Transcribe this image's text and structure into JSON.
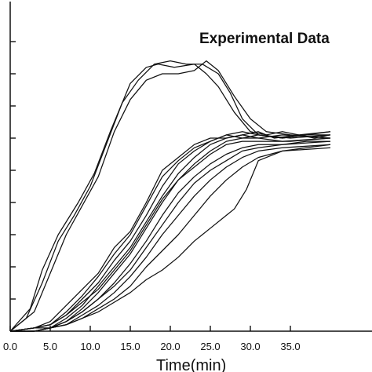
{
  "chart_data": {
    "type": "line",
    "title": "Experimental Data",
    "xlabel": "Time(min)",
    "ylabel": "",
    "xlim": [
      0,
      40
    ],
    "ylim": [
      0,
      10
    ],
    "x_ticks": [
      "0.0",
      "5.0",
      "10.0",
      "15.0",
      "20.0",
      "25.0",
      "30.0",
      "35.0"
    ],
    "x_tick_values": [
      0,
      5,
      10,
      15,
      20,
      25,
      30,
      35
    ],
    "y_tick_values": [
      1,
      2,
      3,
      4,
      5,
      6,
      7,
      8,
      9
    ],
    "grid": false,
    "legend": false,
    "line_color": "#111111",
    "series": [
      {
        "points": [
          [
            0,
            0
          ],
          [
            2.5,
            0.7
          ],
          [
            4,
            1.9
          ],
          [
            6,
            3.0
          ],
          [
            8.5,
            4.0
          ],
          [
            10.5,
            4.9
          ],
          [
            12.5,
            6.2
          ],
          [
            15,
            7.7
          ],
          [
            17,
            8.2
          ],
          [
            18.5,
            8.3
          ],
          [
            20.5,
            8.2
          ],
          [
            23,
            8.3
          ],
          [
            24.5,
            8.0
          ],
          [
            26,
            7.6
          ],
          [
            28,
            6.8
          ],
          [
            30,
            6.2
          ],
          [
            32,
            6.1
          ],
          [
            34,
            6.2
          ],
          [
            36,
            6.1
          ],
          [
            38,
            6.0
          ],
          [
            40,
            6.1
          ]
        ]
      },
      {
        "points": [
          [
            0,
            0
          ],
          [
            2,
            0.4
          ],
          [
            4,
            1.5
          ],
          [
            6,
            2.8
          ],
          [
            8,
            3.6
          ],
          [
            10,
            4.5
          ],
          [
            12,
            5.8
          ],
          [
            14,
            7.1
          ],
          [
            16,
            7.8
          ],
          [
            18,
            8.3
          ],
          [
            20,
            8.4
          ],
          [
            22,
            8.3
          ],
          [
            24,
            8.3
          ],
          [
            26,
            8.0
          ],
          [
            27.5,
            7.4
          ],
          [
            29,
            6.6
          ],
          [
            31,
            6.1
          ],
          [
            34,
            6.0
          ],
          [
            37,
            6.1
          ],
          [
            40,
            6.2
          ]
        ]
      },
      {
        "points": [
          [
            0,
            0
          ],
          [
            3,
            0.6
          ],
          [
            5,
            1.8
          ],
          [
            7,
            3.0
          ],
          [
            9,
            3.9
          ],
          [
            11,
            4.8
          ],
          [
            13,
            6.2
          ],
          [
            15,
            7.2
          ],
          [
            17,
            7.8
          ],
          [
            19,
            8.0
          ],
          [
            21,
            8.0
          ],
          [
            23,
            8.1
          ],
          [
            24.5,
            8.4
          ],
          [
            26,
            8.1
          ],
          [
            28,
            7.3
          ],
          [
            30,
            6.6
          ],
          [
            32,
            6.2
          ],
          [
            35,
            6.1
          ],
          [
            40,
            6.0
          ]
        ]
      },
      {
        "points": [
          [
            0,
            0
          ],
          [
            3,
            0.1
          ],
          [
            5,
            0.3
          ],
          [
            7,
            0.8
          ],
          [
            9,
            1.3
          ],
          [
            11,
            1.8
          ],
          [
            13,
            2.6
          ],
          [
            15,
            3.1
          ],
          [
            17,
            4.0
          ],
          [
            19,
            5.0
          ],
          [
            21,
            5.4
          ],
          [
            23,
            5.8
          ],
          [
            25,
            6.0
          ],
          [
            27,
            6.0
          ],
          [
            29,
            6.1
          ],
          [
            31,
            6.2
          ],
          [
            33,
            6.0
          ],
          [
            36,
            6.1
          ],
          [
            40,
            6.2
          ]
        ]
      },
      {
        "points": [
          [
            0,
            0
          ],
          [
            3,
            0.1
          ],
          [
            5,
            0.2
          ],
          [
            7,
            0.5
          ],
          [
            9,
            1.0
          ],
          [
            11,
            1.5
          ],
          [
            13,
            2.2
          ],
          [
            15,
            2.8
          ],
          [
            17,
            3.6
          ],
          [
            19,
            4.5
          ],
          [
            21,
            5.2
          ],
          [
            23,
            5.6
          ],
          [
            25,
            5.9
          ],
          [
            27,
            6.1
          ],
          [
            29,
            6.2
          ],
          [
            31,
            6.1
          ],
          [
            34,
            6.0
          ],
          [
            37,
            6.1
          ],
          [
            40,
            6.1
          ]
        ]
      },
      {
        "points": [
          [
            0,
            0
          ],
          [
            3,
            0.0
          ],
          [
            5,
            0.1
          ],
          [
            7,
            0.4
          ],
          [
            9,
            0.8
          ],
          [
            11,
            1.4
          ],
          [
            13,
            2.0
          ],
          [
            15,
            2.6
          ],
          [
            17,
            3.4
          ],
          [
            19,
            4.2
          ],
          [
            21,
            4.9
          ],
          [
            23,
            5.4
          ],
          [
            25,
            5.8
          ],
          [
            27,
            6.0
          ],
          [
            29,
            6.1
          ],
          [
            31,
            6.0
          ],
          [
            34,
            6.1
          ],
          [
            40,
            6.0
          ]
        ]
      },
      {
        "points": [
          [
            0,
            0
          ],
          [
            3,
            0.1
          ],
          [
            5,
            0.2
          ],
          [
            7,
            0.6
          ],
          [
            9,
            1.1
          ],
          [
            11,
            1.7
          ],
          [
            13,
            2.4
          ],
          [
            15,
            3.0
          ],
          [
            17,
            3.9
          ],
          [
            19,
            4.8
          ],
          [
            21,
            5.3
          ],
          [
            23,
            5.7
          ],
          [
            25,
            5.9
          ],
          [
            27,
            6.1
          ],
          [
            29,
            6.0
          ],
          [
            31,
            6.1
          ],
          [
            35,
            6.0
          ],
          [
            40,
            6.1
          ]
        ]
      },
      {
        "points": [
          [
            0,
            0
          ],
          [
            3,
            0.0
          ],
          [
            5,
            0.1
          ],
          [
            7,
            0.3
          ],
          [
            9,
            0.7
          ],
          [
            11,
            1.2
          ],
          [
            13,
            1.8
          ],
          [
            15,
            2.4
          ],
          [
            17,
            3.2
          ],
          [
            19,
            4.0
          ],
          [
            21,
            4.7
          ],
          [
            23,
            5.2
          ],
          [
            25,
            5.6
          ],
          [
            27,
            5.9
          ],
          [
            29,
            6.0
          ],
          [
            31,
            6.0
          ],
          [
            34,
            5.9
          ],
          [
            40,
            6.0
          ]
        ]
      },
      {
        "points": [
          [
            0,
            0
          ],
          [
            3,
            0.1
          ],
          [
            5,
            0.2
          ],
          [
            7,
            0.5
          ],
          [
            9,
            0.9
          ],
          [
            11,
            1.3
          ],
          [
            13,
            1.9
          ],
          [
            15,
            2.5
          ],
          [
            17,
            3.3
          ],
          [
            19,
            4.1
          ],
          [
            21,
            4.7
          ],
          [
            23,
            5.1
          ],
          [
            25,
            5.5
          ],
          [
            27,
            5.8
          ],
          [
            29,
            5.9
          ],
          [
            31,
            5.9
          ],
          [
            35,
            5.9
          ],
          [
            40,
            6.0
          ]
        ]
      },
      {
        "points": [
          [
            0,
            0
          ],
          [
            3,
            0.0
          ],
          [
            5,
            0.1
          ],
          [
            7,
            0.3
          ],
          [
            9,
            0.6
          ],
          [
            11,
            1.0
          ],
          [
            13,
            1.5
          ],
          [
            15,
            2.1
          ],
          [
            17,
            2.8
          ],
          [
            19,
            3.6
          ],
          [
            21,
            4.3
          ],
          [
            23,
            4.8
          ],
          [
            25,
            5.2
          ],
          [
            27,
            5.5
          ],
          [
            29,
            5.7
          ],
          [
            31,
            5.8
          ],
          [
            34,
            5.8
          ],
          [
            37,
            5.9
          ],
          [
            40,
            5.9
          ]
        ]
      },
      {
        "points": [
          [
            0,
            0
          ],
          [
            3,
            0.1
          ],
          [
            5,
            0.1
          ],
          [
            7,
            0.3
          ],
          [
            9,
            0.6
          ],
          [
            11,
            1.0
          ],
          [
            13,
            1.4
          ],
          [
            15,
            1.9
          ],
          [
            17,
            2.6
          ],
          [
            19,
            3.3
          ],
          [
            21,
            4.0
          ],
          [
            23,
            4.6
          ],
          [
            25,
            5.0
          ],
          [
            27,
            5.3
          ],
          [
            29,
            5.6
          ],
          [
            31,
            5.7
          ],
          [
            34,
            5.8
          ],
          [
            40,
            5.9
          ]
        ]
      },
      {
        "points": [
          [
            0,
            0
          ],
          [
            3,
            0.0
          ],
          [
            5,
            0.1
          ],
          [
            7,
            0.2
          ],
          [
            9,
            0.5
          ],
          [
            11,
            0.8
          ],
          [
            13,
            1.2
          ],
          [
            15,
            1.7
          ],
          [
            17,
            2.3
          ],
          [
            19,
            3.0
          ],
          [
            21,
            3.6
          ],
          [
            23,
            4.2
          ],
          [
            25,
            4.7
          ],
          [
            27,
            5.1
          ],
          [
            29,
            5.4
          ],
          [
            31,
            5.6
          ],
          [
            34,
            5.7
          ],
          [
            40,
            5.8
          ]
        ]
      },
      {
        "points": [
          [
            0,
            0
          ],
          [
            3,
            0.0
          ],
          [
            5,
            0.1
          ],
          [
            7,
            0.2
          ],
          [
            9,
            0.4
          ],
          [
            11,
            0.7
          ],
          [
            13,
            1.0
          ],
          [
            15,
            1.4
          ],
          [
            17,
            2.0
          ],
          [
            19,
            2.5
          ],
          [
            21,
            3.0
          ],
          [
            23,
            3.6
          ],
          [
            25,
            4.2
          ],
          [
            27,
            4.7
          ],
          [
            29,
            5.1
          ],
          [
            31,
            5.4
          ],
          [
            34,
            5.6
          ],
          [
            40,
            5.7
          ]
        ]
      },
      {
        "points": [
          [
            0,
            0
          ],
          [
            3,
            0.0
          ],
          [
            5,
            0.1
          ],
          [
            7,
            0.2
          ],
          [
            9,
            0.4
          ],
          [
            11,
            0.6
          ],
          [
            13,
            0.9
          ],
          [
            15,
            1.2
          ],
          [
            17,
            1.6
          ],
          [
            19,
            1.9
          ],
          [
            21,
            2.3
          ],
          [
            23,
            2.8
          ],
          [
            25,
            3.2
          ],
          [
            27,
            3.6
          ],
          [
            28,
            3.8
          ],
          [
            29.5,
            4.4
          ],
          [
            31,
            5.3
          ],
          [
            34,
            5.6
          ],
          [
            37,
            5.7
          ],
          [
            40,
            5.8
          ]
        ]
      }
    ]
  }
}
